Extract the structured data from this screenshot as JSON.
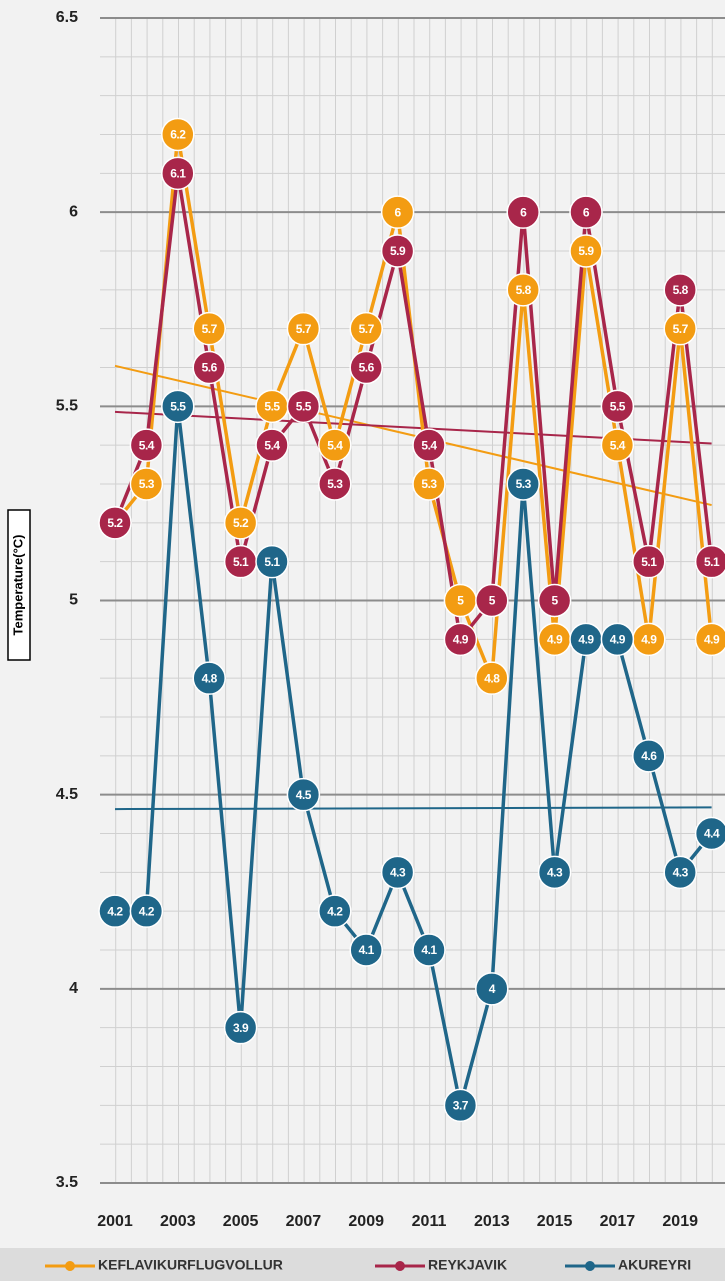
{
  "chart_data": {
    "type": "line",
    "y_label": "Temperature(°C)",
    "categories": [
      "2001",
      null,
      "2003",
      null,
      "2005",
      null,
      "2007",
      null,
      "2009",
      null,
      "2011",
      null,
      "2013",
      null,
      "2015",
      null,
      "2017",
      null,
      "2019",
      null
    ],
    "series": [
      {
        "name": "KEFLAVIKURFLUGVOLLUR",
        "color": "#f39c12",
        "values": [
          5.2,
          5.3,
          6.2,
          5.7,
          5.2,
          5.5,
          5.7,
          5.4,
          5.7,
          6,
          5.3,
          5,
          4.8,
          5.8,
          4.9,
          5.9,
          5.4,
          4.9,
          5.7,
          4.9
        ]
      },
      {
        "name": "REYKJAVIK",
        "color": "#a8264a",
        "values": [
          5.2,
          5.4,
          6.1,
          5.6,
          5.1,
          5.4,
          5.5,
          5.3,
          5.6,
          5.9,
          5.4,
          4.9,
          5,
          6,
          5,
          6,
          5.5,
          5.1,
          5.8,
          5.1
        ]
      },
      {
        "name": "AKUREYRI",
        "color": "#1f6689",
        "values": [
          4.2,
          4.2,
          5.5,
          4.8,
          3.9,
          5.1,
          4.5,
          4.2,
          4.1,
          4.3,
          4.1,
          3.7,
          4,
          5.3,
          4.3,
          4.9,
          4.9,
          4.6,
          4.3,
          4.4
        ]
      }
    ],
    "ylim": [
      3.5,
      6.5
    ],
    "yticks": [
      3.5,
      4,
      4.5,
      5,
      5.5,
      6,
      6.5
    ],
    "grid": true,
    "minor_grid": true,
    "trendline": true,
    "data_labels": true,
    "legend": "bottom"
  }
}
